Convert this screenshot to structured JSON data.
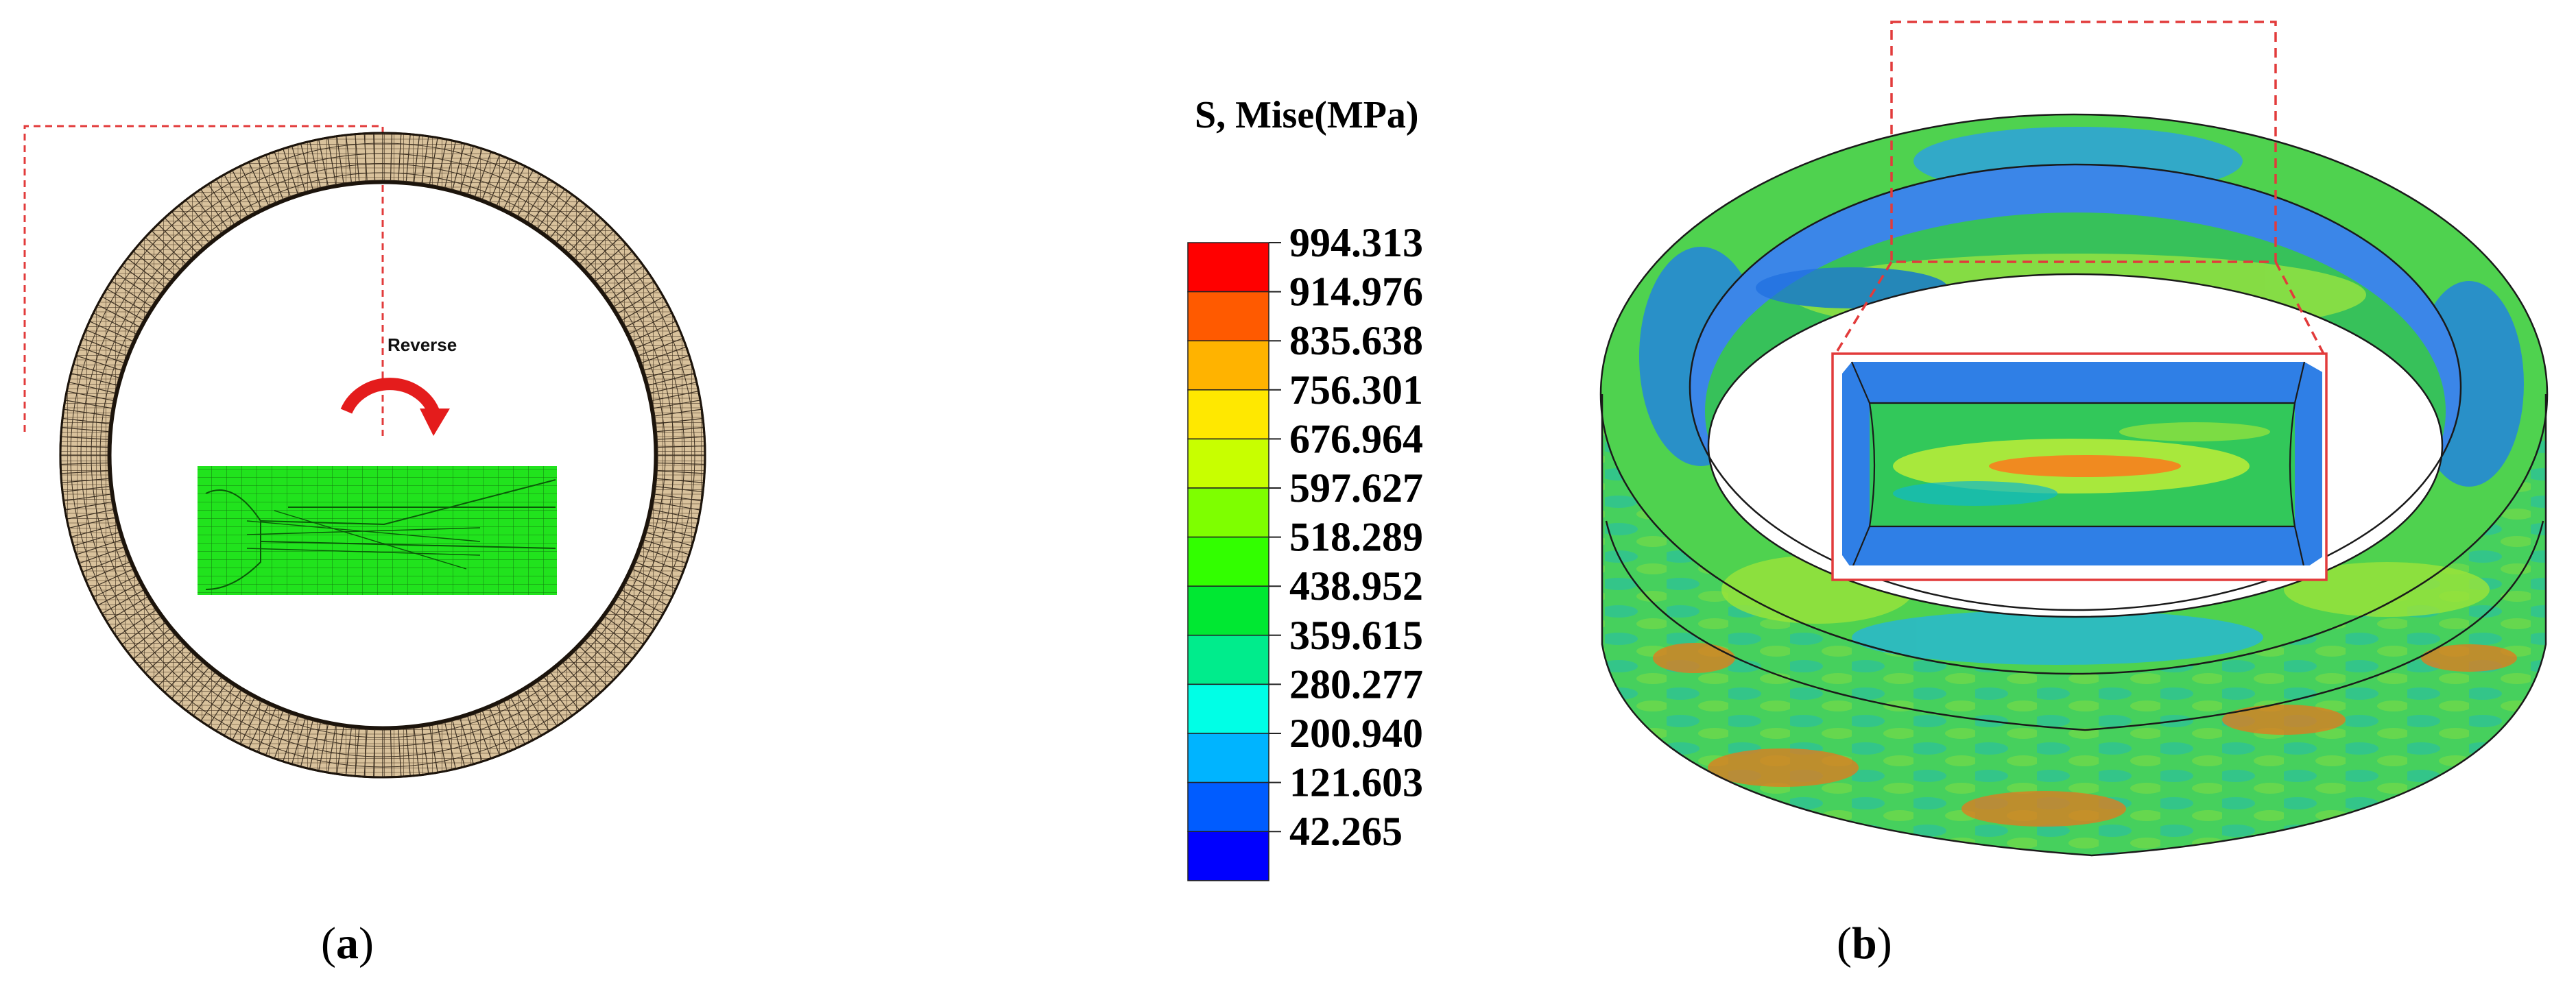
{
  "panel_a": {
    "caption_letter": "a",
    "reverse_label": "Reverse",
    "ring_color": "#d9c29c",
    "mesh_line_color": "#3a2e20",
    "section_color": "#21e31d",
    "guide_color": "#e23b3b",
    "arrow_color": "#e41c1c"
  },
  "legend": {
    "title": "S, Mise(MPa)",
    "values": [
      "994.313",
      "914.976",
      "835.638",
      "756.301",
      "676.964",
      "597.627",
      "518.289",
      "438.952",
      "359.615",
      "280.277",
      "200.940",
      "121.603",
      "42.265"
    ],
    "colors": [
      "#ff0000",
      "#ff5a00",
      "#ffb300",
      "#ffe800",
      "#c8ff00",
      "#7eff00",
      "#32ff00",
      "#00e832",
      "#00ec8c",
      "#00ffe6",
      "#00b4ff",
      "#005cff",
      "#0000ff"
    ]
  },
  "panel_b": {
    "caption_letter": "b",
    "frame_color": "#e23b3b"
  }
}
